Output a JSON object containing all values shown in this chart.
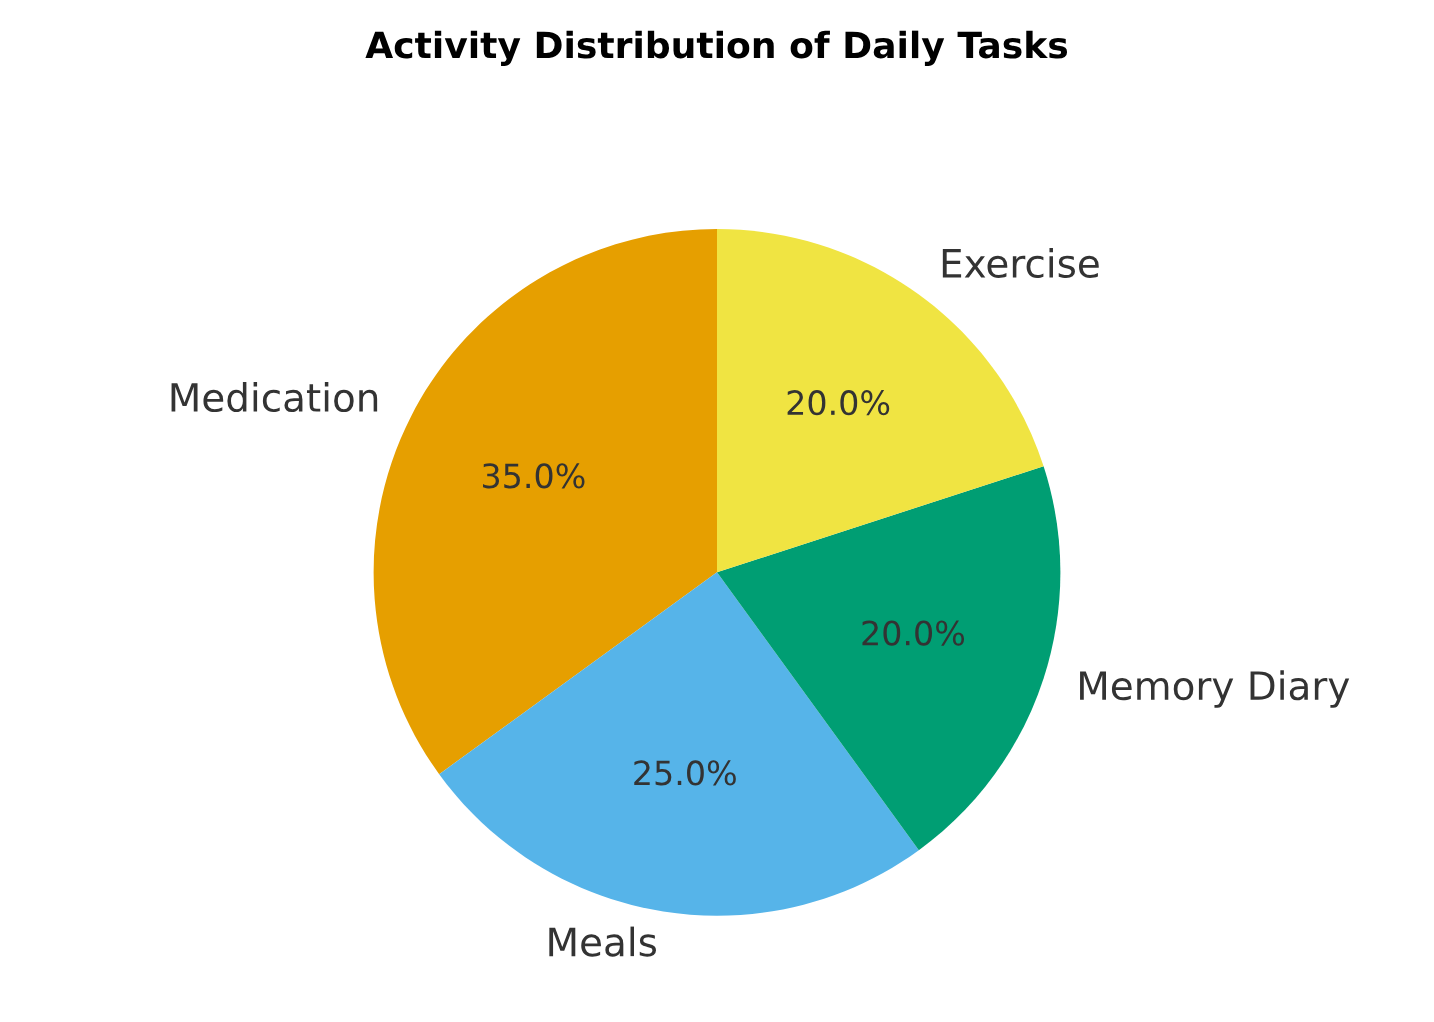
{
  "chart_data": {
    "type": "pie",
    "title": "Activity Distribution of Daily Tasks",
    "categories": [
      "Medication",
      "Meals",
      "Memory Diary",
      "Exercise"
    ],
    "values": [
      35,
      25,
      20,
      20
    ],
    "value_labels": [
      "35.0%",
      "25.0%",
      "20.0%",
      "20.0%"
    ],
    "colors": [
      "#e69f00",
      "#56b4e9",
      "#009e73",
      "#f0e442"
    ]
  }
}
